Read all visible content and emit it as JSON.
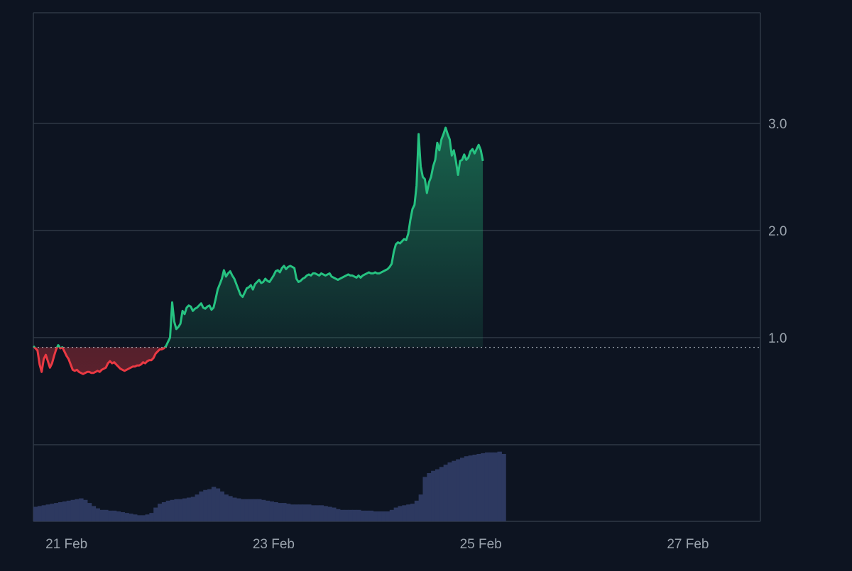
{
  "chart_data": {
    "type": "area",
    "baseline": 0.91,
    "y_axis": {
      "position": "right",
      "ticks": [
        "1.0",
        "2.0",
        "3.0"
      ],
      "tick_values": [
        1.0,
        2.0,
        3.0
      ],
      "range": [
        0.0,
        3.02
      ]
    },
    "x_axis": {
      "ticks": [
        "21 Feb",
        "23 Feb",
        "25 Feb",
        "27 Feb"
      ],
      "tick_values": [
        0.32,
        2.32,
        4.32,
        6.32
      ],
      "range": [
        0.0,
        7.02
      ]
    },
    "grid": true,
    "colors": {
      "background": "#0d1421",
      "grid": "#2e3845",
      "tick_text": "#9aa3ad",
      "up_line": "#26c281",
      "down_line": "#ea3943",
      "baseline_line": "#c9d1d9",
      "volume": "#2d3960"
    },
    "price_series": {
      "x_start": 0.0,
      "x_step": 0.02,
      "values": [
        0.92,
        0.9,
        0.88,
        0.75,
        0.68,
        0.8,
        0.84,
        0.78,
        0.72,
        0.76,
        0.83,
        0.89,
        0.93,
        0.9,
        0.91,
        0.87,
        0.83,
        0.8,
        0.75,
        0.7,
        0.69,
        0.7,
        0.68,
        0.67,
        0.66,
        0.67,
        0.68,
        0.68,
        0.67,
        0.67,
        0.68,
        0.69,
        0.68,
        0.7,
        0.71,
        0.72,
        0.76,
        0.78,
        0.76,
        0.77,
        0.75,
        0.73,
        0.71,
        0.7,
        0.69,
        0.7,
        0.71,
        0.72,
        0.73,
        0.73,
        0.74,
        0.74,
        0.75,
        0.77,
        0.76,
        0.78,
        0.79,
        0.79,
        0.81,
        0.85,
        0.87,
        0.89,
        0.89,
        0.9,
        0.92,
        0.96,
        1.0,
        1.33,
        1.15,
        1.08,
        1.1,
        1.13,
        1.25,
        1.22,
        1.28,
        1.3,
        1.29,
        1.25,
        1.27,
        1.28,
        1.3,
        1.32,
        1.28,
        1.27,
        1.29,
        1.3,
        1.26,
        1.28,
        1.36,
        1.45,
        1.5,
        1.55,
        1.63,
        1.57,
        1.6,
        1.62,
        1.58,
        1.55,
        1.5,
        1.45,
        1.4,
        1.38,
        1.42,
        1.46,
        1.47,
        1.49,
        1.45,
        1.5,
        1.52,
        1.54,
        1.51,
        1.52,
        1.55,
        1.53,
        1.52,
        1.55,
        1.58,
        1.62,
        1.63,
        1.61,
        1.65,
        1.67,
        1.64,
        1.66,
        1.67,
        1.66,
        1.65,
        1.55,
        1.52,
        1.53,
        1.55,
        1.56,
        1.58,
        1.59,
        1.58,
        1.6,
        1.6,
        1.59,
        1.58,
        1.6,
        1.59,
        1.58,
        1.59,
        1.6,
        1.57,
        1.56,
        1.55,
        1.54,
        1.55,
        1.56,
        1.57,
        1.58,
        1.59,
        1.58,
        1.58,
        1.57,
        1.56,
        1.58,
        1.56,
        1.58,
        1.59,
        1.6,
        1.61,
        1.6,
        1.6,
        1.61,
        1.6,
        1.6,
        1.61,
        1.62,
        1.63,
        1.64,
        1.66,
        1.69,
        1.8,
        1.87,
        1.89,
        1.88,
        1.9,
        1.92,
        1.91,
        1.97,
        2.1,
        2.2,
        2.24,
        2.42,
        2.9,
        2.6,
        2.5,
        2.48,
        2.35,
        2.45,
        2.5,
        2.6,
        2.66,
        2.82,
        2.75,
        2.85,
        2.9,
        2.96,
        2.9,
        2.85,
        2.7,
        2.75,
        2.65,
        2.52,
        2.65,
        2.66,
        2.71,
        2.66,
        2.68,
        2.74,
        2.76,
        2.72,
        2.76,
        2.8,
        2.75,
        2.65
      ]
    },
    "volume_series": {
      "x_start": 0.0,
      "x_step": 0.04,
      "values": [
        0.19,
        0.2,
        0.21,
        0.22,
        0.23,
        0.24,
        0.25,
        0.26,
        0.27,
        0.28,
        0.29,
        0.3,
        0.28,
        0.24,
        0.2,
        0.17,
        0.15,
        0.15,
        0.14,
        0.14,
        0.13,
        0.12,
        0.11,
        0.1,
        0.09,
        0.08,
        0.08,
        0.09,
        0.11,
        0.18,
        0.23,
        0.25,
        0.27,
        0.28,
        0.29,
        0.29,
        0.3,
        0.31,
        0.32,
        0.35,
        0.39,
        0.41,
        0.42,
        0.45,
        0.43,
        0.39,
        0.35,
        0.33,
        0.31,
        0.3,
        0.29,
        0.29,
        0.29,
        0.29,
        0.29,
        0.28,
        0.27,
        0.26,
        0.25,
        0.24,
        0.24,
        0.23,
        0.22,
        0.22,
        0.22,
        0.22,
        0.22,
        0.21,
        0.21,
        0.21,
        0.2,
        0.19,
        0.18,
        0.16,
        0.15,
        0.15,
        0.15,
        0.15,
        0.15,
        0.14,
        0.14,
        0.14,
        0.13,
        0.13,
        0.13,
        0.13,
        0.15,
        0.18,
        0.2,
        0.21,
        0.22,
        0.23,
        0.27,
        0.35,
        0.58,
        0.63,
        0.66,
        0.68,
        0.71,
        0.74,
        0.77,
        0.79,
        0.81,
        0.83,
        0.85,
        0.86,
        0.87,
        0.88,
        0.89,
        0.9,
        0.9,
        0.9,
        0.91,
        0.88
      ]
    }
  }
}
